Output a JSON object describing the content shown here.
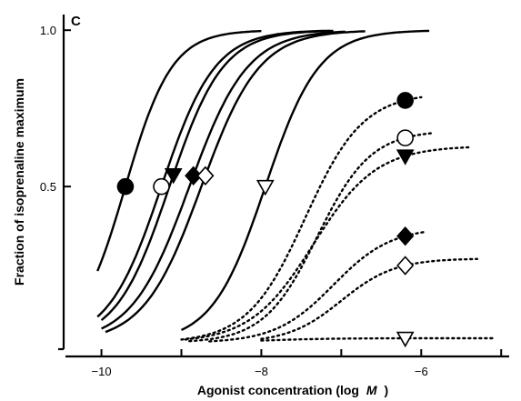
{
  "chart_data": {
    "type": "line",
    "panel_label": "C",
    "xlabel": "Agonist concentration (log",
    "xlabel_unit": "M",
    "xlabel_close": ")",
    "ylabel": "Fraction of isoprenaline maximum",
    "xlim": [
      -10.45,
      -4.9
    ],
    "ylim": [
      -0.02,
      1.05
    ],
    "x_ticks": [
      -10,
      -9,
      -8,
      -7,
      -6,
      -5
    ],
    "x_tick_labels": [
      "−10",
      "",
      "−8",
      "",
      "−6",
      ""
    ],
    "y_ticks": [
      0.5,
      1.0
    ],
    "y_tick_labels": [
      "0.5",
      "1.0"
    ],
    "grid": false,
    "legend": "none",
    "series": [
      {
        "marker": "filled-circle",
        "style": "solid",
        "top": 1.0,
        "ec50": -9.7,
        "slope": 1.5,
        "x": [
          -10.05,
          -8.0
        ],
        "marker_x": -9.7
      },
      {
        "marker": "open-circle",
        "style": "solid",
        "top": 1.0,
        "ec50": -9.25,
        "slope": 1.3,
        "x": [
          -10.05,
          -7.15
        ],
        "marker_x": -9.25
      },
      {
        "marker": "filled-triangle",
        "style": "solid",
        "top": 1.0,
        "ec50": -9.15,
        "slope": 1.3,
        "x": [
          -10.0,
          -7.1
        ],
        "marker_x": -9.1
      },
      {
        "marker": "filled-diamond",
        "style": "solid",
        "top": 1.0,
        "ec50": -8.9,
        "slope": 1.2,
        "x": [
          -10.0,
          -6.95
        ],
        "marker_x": -8.85
      },
      {
        "marker": "open-diamond",
        "style": "solid",
        "top": 1.0,
        "ec50": -8.75,
        "slope": 1.2,
        "x": [
          -9.95,
          -6.7
        ],
        "marker_x": -8.7
      },
      {
        "marker": "open-triangle",
        "style": "solid",
        "top": 1.0,
        "ec50": -7.95,
        "slope": 1.3,
        "x": [
          -9.0,
          -5.9
        ],
        "marker_x": -7.95
      },
      {
        "marker": "filled-circle",
        "style": "dotted",
        "top": 0.8,
        "ec50": -7.45,
        "slope": 1.2,
        "x": [
          -9.0,
          -6.0
        ],
        "marker_x": -6.2
      },
      {
        "marker": "open-circle",
        "style": "dotted",
        "top": 0.68,
        "ec50": -7.3,
        "slope": 1.3,
        "x": [
          -8.9,
          -5.85
        ],
        "marker_x": -6.2
      },
      {
        "marker": "filled-triangle",
        "style": "dotted",
        "top": 0.63,
        "ec50": -7.35,
        "slope": 1.1,
        "x": [
          -8.95,
          -5.4
        ],
        "marker_x": -6.2
      },
      {
        "marker": "filled-diamond",
        "style": "dotted",
        "top": 0.37,
        "ec50": -7.1,
        "slope": 1.2,
        "x": [
          -8.65,
          -5.95
        ],
        "marker_x": -6.2
      },
      {
        "marker": "open-diamond",
        "style": "dotted",
        "top": 0.27,
        "ec50": -7.0,
        "slope": 1.3,
        "x": [
          -8.0,
          -5.3
        ],
        "marker_x": -6.2
      },
      {
        "marker": "open-triangle",
        "style": "dotted",
        "top": 0.015,
        "ec50": -8.0,
        "slope": 1.0,
        "x": [
          -8.0,
          -5.1
        ],
        "marker_x": -6.2
      }
    ]
  }
}
